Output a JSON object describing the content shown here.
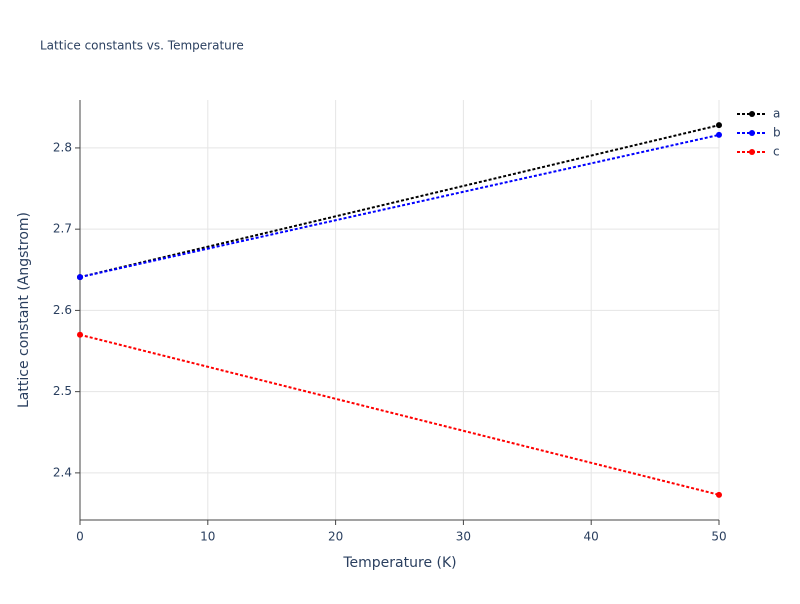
{
  "chart_data": {
    "type": "line",
    "title": "Lattice constants vs. Temperature",
    "x_label": "Temperature (K)",
    "y_label": "Lattice constant (Angstrom)",
    "x": [
      0,
      50
    ],
    "series": [
      {
        "name": "a",
        "color": "#000000",
        "values": [
          2.641,
          2.828
        ]
      },
      {
        "name": "b",
        "color": "#0000ff",
        "values": [
          2.641,
          2.816
        ]
      },
      {
        "name": "c",
        "color": "#ff0000",
        "values": [
          2.57,
          2.373
        ]
      }
    ],
    "xlim": [
      0,
      50
    ],
    "xticks": [
      0,
      10,
      20,
      30,
      40,
      50
    ],
    "ylim": [
      2.342,
      2.859
    ],
    "yticks": [
      2.4,
      2.5,
      2.6,
      2.7,
      2.8
    ],
    "grid": true,
    "legend": "right",
    "line_style": "dotted"
  }
}
